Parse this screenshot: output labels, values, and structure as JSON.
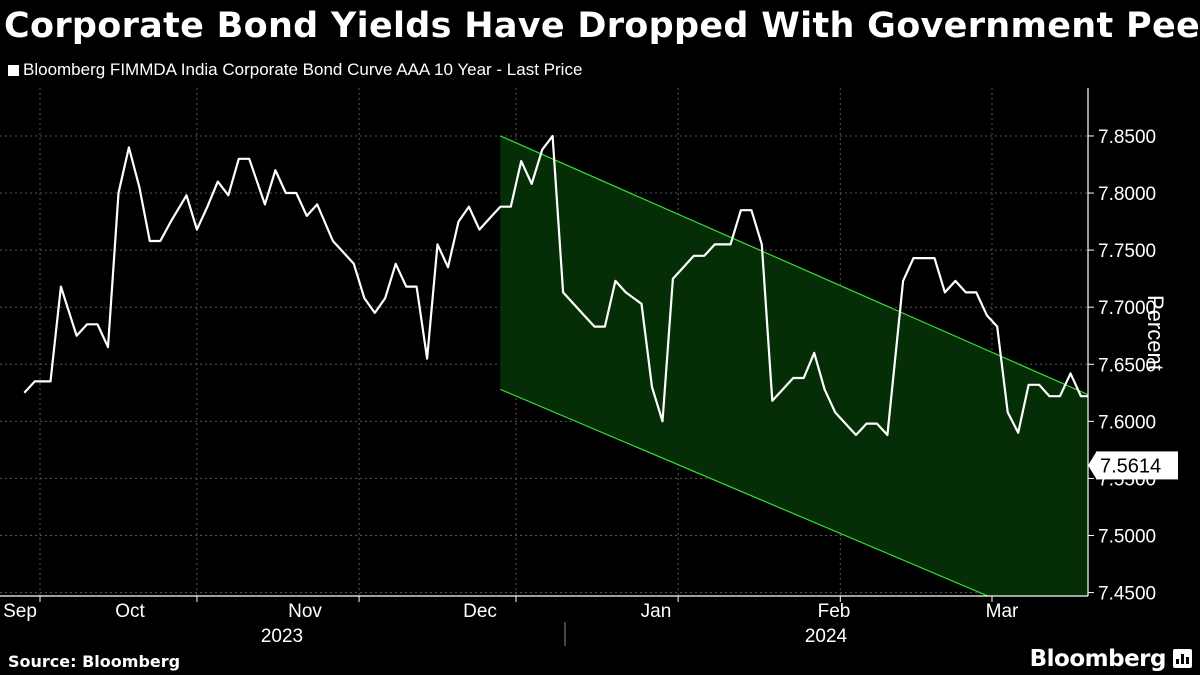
{
  "title": "Corporate Bond Yields Have Dropped With Government Peers",
  "legend": "Bloomberg FIMMDA India Corporate Bond Curve AAA 10 Year - Last Price",
  "source": "Source: Bloomberg",
  "brand": "Bloomberg",
  "colors": {
    "background": "#000000",
    "line": "#ffffff",
    "channel_fill": "#062e06",
    "channel_line": "#33dd33",
    "grid": "#555555"
  },
  "chart_data": {
    "type": "line",
    "title": "Corporate Bond Yields Have Dropped With Government Peers",
    "ylabel": "Percent",
    "ylim": [
      7.44,
      7.885
    ],
    "yticks": [
      7.45,
      7.5,
      7.55,
      7.6,
      7.65,
      7.7,
      7.75,
      7.8,
      7.85
    ],
    "ytick_labels": [
      "7.4500",
      "7.5000",
      "7.5500",
      "7.6000",
      "7.6500",
      "7.7000",
      "7.7500",
      "7.8000",
      "7.8500"
    ],
    "xlim": [
      "2023-09-01",
      "2024-03-27"
    ],
    "month_ticks": [
      {
        "label": "Sep",
        "date": "2023-09-01"
      },
      {
        "label": "Oct",
        "date": "2023-10-01"
      },
      {
        "label": "Nov",
        "date": "2023-11-01"
      },
      {
        "label": "Dec",
        "date": "2023-12-01"
      },
      {
        "label": "Jan",
        "date": "2024-01-01"
      },
      {
        "label": "Feb",
        "date": "2024-02-01"
      },
      {
        "label": "Mar",
        "date": "2024-03-01"
      }
    ],
    "years": [
      {
        "label": "2023",
        "center": "2023-10-28"
      },
      {
        "label": "2024",
        "center": "2024-02-02"
      }
    ],
    "year_divider": "2024-01-08",
    "last_value_label": "7.5614",
    "channel": {
      "upper": [
        [
          "2023-11-28",
          7.85
        ],
        [
          "2024-03-27",
          7.608
        ]
      ],
      "lower": [
        [
          "2023-11-28",
          7.628
        ],
        [
          "2024-03-27",
          7.395
        ]
      ]
    },
    "series": [
      {
        "name": "Bloomberg FIMMDA India Corporate Bond Curve AAA 10 Year - Last Price",
        "points": [
          [
            "2023-08-29",
            7.625
          ],
          [
            "2023-08-31",
            7.635
          ],
          [
            "2023-09-03",
            7.635
          ],
          [
            "2023-09-05",
            7.718
          ],
          [
            "2023-09-08",
            7.675
          ],
          [
            "2023-09-10",
            7.685
          ],
          [
            "2023-09-12",
            7.685
          ],
          [
            "2023-09-14",
            7.665
          ],
          [
            "2023-09-16",
            7.8
          ],
          [
            "2023-09-18",
            7.84
          ],
          [
            "2023-09-20",
            7.805
          ],
          [
            "2023-09-22",
            7.758
          ],
          [
            "2023-09-24",
            7.758
          ],
          [
            "2023-09-26",
            7.775
          ],
          [
            "2023-09-29",
            7.798
          ],
          [
            "2023-10-01",
            7.768
          ],
          [
            "2023-10-03",
            7.788
          ],
          [
            "2023-10-05",
            7.81
          ],
          [
            "2023-10-07",
            7.798
          ],
          [
            "2023-10-09",
            7.83
          ],
          [
            "2023-10-11",
            7.83
          ],
          [
            "2023-10-14",
            7.79
          ],
          [
            "2023-10-16",
            7.82
          ],
          [
            "2023-10-18",
            7.8
          ],
          [
            "2023-10-20",
            7.8
          ],
          [
            "2023-10-22",
            7.78
          ],
          [
            "2023-10-24",
            7.79
          ],
          [
            "2023-10-27",
            7.758
          ],
          [
            "2023-10-29",
            7.748
          ],
          [
            "2023-10-31",
            7.738
          ],
          [
            "2023-11-02",
            7.708
          ],
          [
            "2023-11-04",
            7.695
          ],
          [
            "2023-11-06",
            7.708
          ],
          [
            "2023-11-08",
            7.738
          ],
          [
            "2023-11-10",
            7.718
          ],
          [
            "2023-11-12",
            7.718
          ],
          [
            "2023-11-14",
            7.655
          ],
          [
            "2023-11-16",
            7.755
          ],
          [
            "2023-11-18",
            7.735
          ],
          [
            "2023-11-20",
            7.775
          ],
          [
            "2023-11-22",
            7.788
          ],
          [
            "2023-11-24",
            7.768
          ],
          [
            "2023-11-26",
            7.778
          ],
          [
            "2023-11-28",
            7.788
          ],
          [
            "2023-11-30",
            7.788
          ],
          [
            "2023-12-02",
            7.828
          ],
          [
            "2023-12-04",
            7.808
          ],
          [
            "2023-12-06",
            7.838
          ],
          [
            "2023-12-08",
            7.85
          ],
          [
            "2023-12-10",
            7.713
          ],
          [
            "2023-12-12",
            7.703
          ],
          [
            "2023-12-14",
            7.693
          ],
          [
            "2023-12-16",
            7.683
          ],
          [
            "2023-12-18",
            7.683
          ],
          [
            "2023-12-20",
            7.723
          ],
          [
            "2023-12-22",
            7.713
          ],
          [
            "2023-12-25",
            7.703
          ],
          [
            "2023-12-27",
            7.63
          ],
          [
            "2023-12-29",
            7.6
          ],
          [
            "2023-12-31",
            7.725
          ],
          [
            "2024-01-02",
            7.735
          ],
          [
            "2024-01-04",
            7.745
          ],
          [
            "2024-01-06",
            7.745
          ],
          [
            "2024-01-08",
            7.755
          ],
          [
            "2024-01-11",
            7.755
          ],
          [
            "2024-01-13",
            7.785
          ],
          [
            "2024-01-15",
            7.785
          ],
          [
            "2024-01-17",
            7.755
          ],
          [
            "2024-01-19",
            7.618
          ],
          [
            "2024-01-21",
            7.628
          ],
          [
            "2024-01-23",
            7.638
          ],
          [
            "2024-01-25",
            7.638
          ],
          [
            "2024-01-27",
            7.66
          ],
          [
            "2024-01-29",
            7.628
          ],
          [
            "2024-01-31",
            7.608
          ],
          [
            "2024-02-02",
            7.598
          ],
          [
            "2024-02-04",
            7.588
          ],
          [
            "2024-02-06",
            7.598
          ],
          [
            "2024-02-08",
            7.598
          ],
          [
            "2024-02-10",
            7.588
          ],
          [
            "2024-02-13",
            7.723
          ],
          [
            "2024-02-15",
            7.743
          ],
          [
            "2024-02-17",
            7.743
          ],
          [
            "2024-02-19",
            7.743
          ],
          [
            "2024-02-21",
            7.713
          ],
          [
            "2024-02-23",
            7.723
          ],
          [
            "2024-02-25",
            7.713
          ],
          [
            "2024-02-27",
            7.713
          ],
          [
            "2024-02-29",
            7.693
          ],
          [
            "2024-03-02",
            7.683
          ],
          [
            "2024-03-04",
            7.608
          ],
          [
            "2024-03-06",
            7.59
          ],
          [
            "2024-03-08",
            7.632
          ],
          [
            "2024-03-10",
            7.632
          ],
          [
            "2024-03-12",
            7.622
          ],
          [
            "2024-03-14",
            7.622
          ],
          [
            "2024-03-16",
            7.642
          ],
          [
            "2024-03-18",
            7.622
          ],
          [
            "2024-03-20",
            7.622
          ]
        ]
      }
    ]
  }
}
